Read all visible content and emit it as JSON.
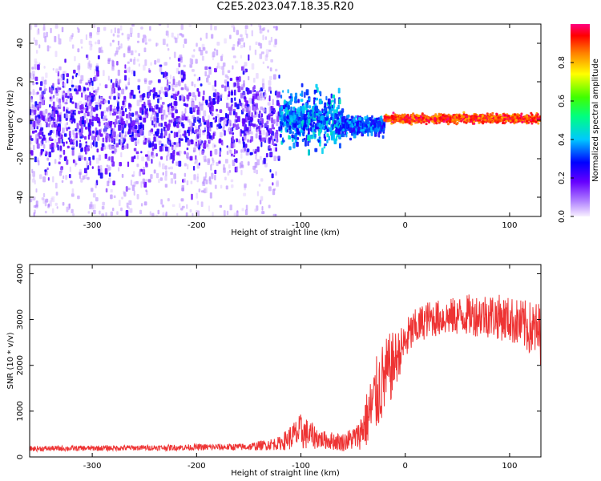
{
  "title": "C2E5.2023.047.18.35.R20",
  "chart_data": [
    {
      "type": "heatmap",
      "panel": "top",
      "title": "",
      "xlabel": "Height of straight line (km)",
      "ylabel": "Frequency (Hz)",
      "xlim": [
        -360,
        130
      ],
      "ylim": [
        -50,
        50
      ],
      "x_ticks": [
        -300,
        -200,
        -100,
        0,
        100
      ],
      "x_tick_labels": [
        "-300",
        "-200",
        "-100",
        "0",
        "100"
      ],
      "y_ticks": [
        -40,
        -20,
        0,
        20,
        40
      ],
      "y_tick_labels": [
        "-40",
        "-20",
        "0",
        "20",
        "40"
      ],
      "colorbar": {
        "label": "Normalized spectral amplitude",
        "range": [
          0.0,
          1.0
        ],
        "ticks": [
          0.0,
          0.2,
          0.4,
          0.6,
          0.8
        ],
        "tick_labels": [
          "0.0",
          "0.2",
          "0.4",
          "0.6",
          "0.8"
        ]
      },
      "description_regions": [
        {
          "x_range": [
            -360,
            -120
          ],
          "freq_center": 0,
          "freq_spread": 12,
          "amplitude": 0.1
        },
        {
          "x_range": [
            -120,
            -60
          ],
          "freq_center": 0,
          "freq_spread": 6,
          "amplitude": 0.45
        },
        {
          "x_range": [
            -60,
            -20
          ],
          "freq_center": -3,
          "freq_spread": 2,
          "amplitude": 0.4
        },
        {
          "x_range": [
            -20,
            130
          ],
          "freq_center": 0.8,
          "freq_spread": 1,
          "amplitude": 0.95
        }
      ]
    },
    {
      "type": "line",
      "panel": "bottom",
      "title": "",
      "xlabel": "Height of straight line (km)",
      "ylabel": "SNR (10 * v/v)",
      "xlim": [
        -360,
        130
      ],
      "ylim": [
        0,
        4200
      ],
      "x_ticks": [
        -300,
        -200,
        -100,
        0,
        100
      ],
      "x_tick_labels": [
        "-300",
        "-200",
        "-100",
        "0",
        "100"
      ],
      "y_ticks": [
        0,
        1000,
        2000,
        3000,
        4000
      ],
      "y_tick_labels": [
        "0",
        "1000",
        "2000",
        "3000",
        "4000"
      ],
      "series": [
        {
          "name": "SNR",
          "color": "#ee3333",
          "envelope": {
            "x": [
              -360,
              -250,
              -150,
              -120,
              -100,
              -80,
              -60,
              -45,
              -35,
              -25,
              -15,
              -5,
              5,
              20,
              40,
              60,
              80,
              100,
              120,
              130
            ],
            "y": [
              180,
              200,
              220,
              300,
              550,
              380,
              320,
              450,
              900,
              1500,
              1900,
              2300,
              2700,
              3000,
              3050,
              3100,
              3100,
              3000,
              2800,
              2700
            ]
          },
          "noise_amplitude": [
            60,
            60,
            80,
            150,
            400,
            200,
            200,
            300,
            700,
            900,
            800,
            500,
            450,
            400,
            400,
            450,
            500,
            500,
            600,
            700
          ]
        }
      ]
    }
  ]
}
